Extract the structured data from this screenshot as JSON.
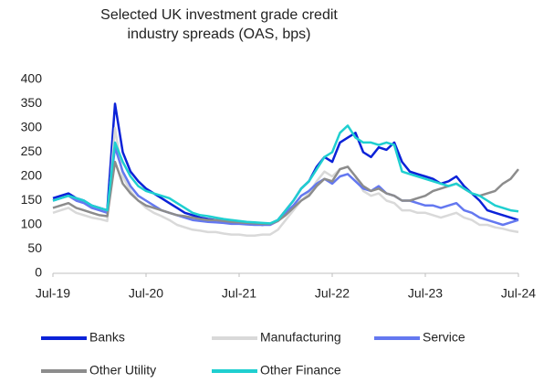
{
  "chart_data": {
    "type": "line",
    "title": "Selected UK investment grade credit industry spreads (OAS, bps)",
    "x": [
      "Jul-19",
      "Aug-19",
      "Sep-19",
      "Oct-19",
      "Nov-19",
      "Dec-19",
      "Jan-20",
      "Feb-20",
      "Mar-20",
      "Apr-20",
      "May-20",
      "Jun-20",
      "Jul-20",
      "Aug-20",
      "Sep-20",
      "Oct-20",
      "Nov-20",
      "Dec-20",
      "Jan-21",
      "Feb-21",
      "Mar-21",
      "Apr-21",
      "May-21",
      "Jun-21",
      "Jul-21",
      "Aug-21",
      "Sep-21",
      "Oct-21",
      "Nov-21",
      "Dec-21",
      "Jan-22",
      "Feb-22",
      "Mar-22",
      "Apr-22",
      "May-22",
      "Jun-22",
      "Jul-22",
      "Aug-22",
      "Sep-22",
      "Oct-22",
      "Nov-22",
      "Dec-22",
      "Jan-23",
      "Feb-23",
      "Mar-23",
      "Apr-23",
      "May-23",
      "Jun-23",
      "Jul-23",
      "Aug-23",
      "Sep-23",
      "Oct-23",
      "Nov-23",
      "Dec-23",
      "Jan-24",
      "Feb-24",
      "Mar-24",
      "Apr-24",
      "May-24",
      "Jun-24",
      "Jul-24"
    ],
    "xticks": [
      "Jul-19",
      "Jul-20",
      "Jul-21",
      "Jul-22",
      "Jul-23",
      "Jul-24"
    ],
    "ylim": [
      0,
      400
    ],
    "yticks": [
      0,
      50,
      100,
      150,
      200,
      250,
      300,
      350,
      400
    ],
    "grid": false,
    "series": [
      {
        "name": "Banks",
        "color": "#0b22d8",
        "values": [
          155,
          160,
          165,
          155,
          150,
          140,
          135,
          130,
          350,
          250,
          210,
          190,
          175,
          165,
          155,
          145,
          135,
          125,
          120,
          115,
          112,
          110,
          108,
          105,
          105,
          103,
          102,
          100,
          102,
          110,
          130,
          150,
          175,
          190,
          220,
          240,
          230,
          270,
          280,
          290,
          250,
          240,
          260,
          255,
          270,
          230,
          210,
          205,
          200,
          195,
          185,
          190,
          200,
          180,
          165,
          150,
          130,
          125,
          120,
          115,
          110
        ]
      },
      {
        "name": "Manufacturing",
        "color": "#d9d9d9",
        "values": [
          125,
          130,
          135,
          125,
          120,
          115,
          112,
          108,
          300,
          200,
          170,
          150,
          135,
          125,
          118,
          110,
          100,
          95,
          90,
          88,
          85,
          85,
          82,
          80,
          80,
          78,
          78,
          80,
          80,
          90,
          110,
          130,
          150,
          165,
          190,
          210,
          200,
          215,
          220,
          200,
          170,
          160,
          165,
          150,
          145,
          130,
          130,
          125,
          125,
          120,
          115,
          120,
          125,
          115,
          110,
          100,
          100,
          95,
          92,
          88,
          85
        ]
      },
      {
        "name": "Service",
        "color": "#6478f0",
        "values": [
          150,
          155,
          160,
          150,
          145,
          135,
          130,
          125,
          260,
          210,
          180,
          160,
          150,
          140,
          130,
          125,
          120,
          115,
          110,
          108,
          106,
          105,
          104,
          102,
          102,
          101,
          100,
          100,
          100,
          108,
          125,
          140,
          160,
          170,
          185,
          195,
          185,
          200,
          205,
          190,
          175,
          170,
          180,
          165,
          160,
          150,
          150,
          145,
          140,
          140,
          135,
          140,
          145,
          130,
          125,
          115,
          110,
          105,
          100,
          105,
          110
        ]
      },
      {
        "name": "Other Utility",
        "color": "#8c8c8c",
        "values": [
          135,
          140,
          145,
          135,
          130,
          125,
          120,
          118,
          230,
          185,
          165,
          150,
          140,
          135,
          130,
          125,
          120,
          118,
          115,
          112,
          110,
          110,
          108,
          106,
          105,
          104,
          103,
          102,
          102,
          108,
          120,
          135,
          150,
          160,
          180,
          195,
          190,
          215,
          220,
          200,
          180,
          170,
          175,
          165,
          160,
          150,
          150,
          155,
          160,
          170,
          175,
          180,
          185,
          175,
          165,
          160,
          165,
          170,
          185,
          195,
          215
        ]
      },
      {
        "name": "Other Finance",
        "color": "#1fcfd0",
        "values": [
          150,
          155,
          160,
          155,
          150,
          140,
          135,
          130,
          270,
          230,
          200,
          180,
          170,
          165,
          160,
          155,
          145,
          135,
          125,
          120,
          118,
          115,
          112,
          110,
          108,
          106,
          105,
          104,
          103,
          110,
          130,
          150,
          175,
          190,
          215,
          240,
          250,
          290,
          305,
          280,
          270,
          270,
          265,
          270,
          265,
          210,
          205,
          200,
          195,
          190,
          185,
          180,
          185,
          175,
          165,
          160,
          150,
          140,
          135,
          130,
          128
        ]
      }
    ]
  }
}
